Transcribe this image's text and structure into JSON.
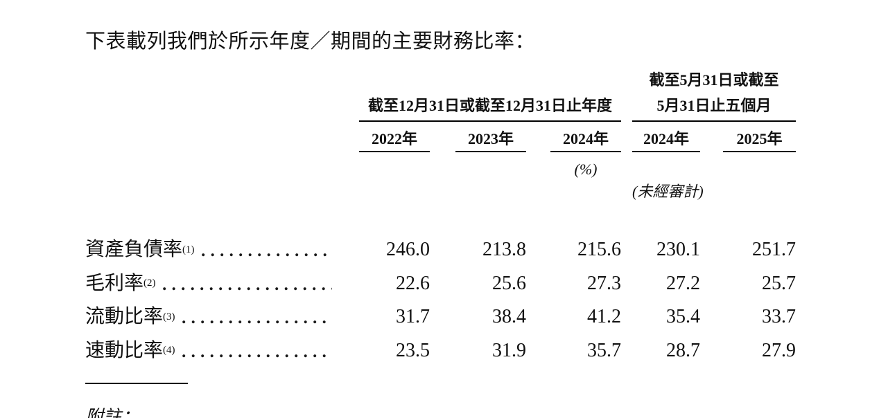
{
  "intro": "下表載列我們於所示年度／期間的主要財務比率：",
  "table": {
    "group1_header": "截至12月31日或截至12月31日止年度",
    "group2_header_line1": "截至5月31日或截至",
    "group2_header_line2": "5月31日止五個月",
    "years": [
      "2022年",
      "2023年",
      "2024年",
      "2024年",
      "2025年"
    ],
    "unit_label": "(%)",
    "unaudited_label": "(未經審計)",
    "rows": [
      {
        "label": "資產負債率",
        "footnote": "(1)",
        "values": [
          "246.0",
          "213.8",
          "215.6",
          "230.1",
          "251.7"
        ]
      },
      {
        "label": "毛利率",
        "footnote": "(2)",
        "values": [
          "22.6",
          "25.6",
          "27.3",
          "27.2",
          "25.7"
        ]
      },
      {
        "label": "流動比率",
        "footnote": "(3)",
        "values": [
          "31.7",
          "38.4",
          "41.2",
          "35.4",
          "33.7"
        ]
      },
      {
        "label": "速動比率",
        "footnote": "(4)",
        "values": [
          "23.5",
          "31.9",
          "35.7",
          "28.7",
          "27.9"
        ]
      }
    ]
  },
  "notes_label": "附註：",
  "colors": {
    "text": "#111111",
    "rule": "#000000",
    "background": "#ffffff"
  }
}
